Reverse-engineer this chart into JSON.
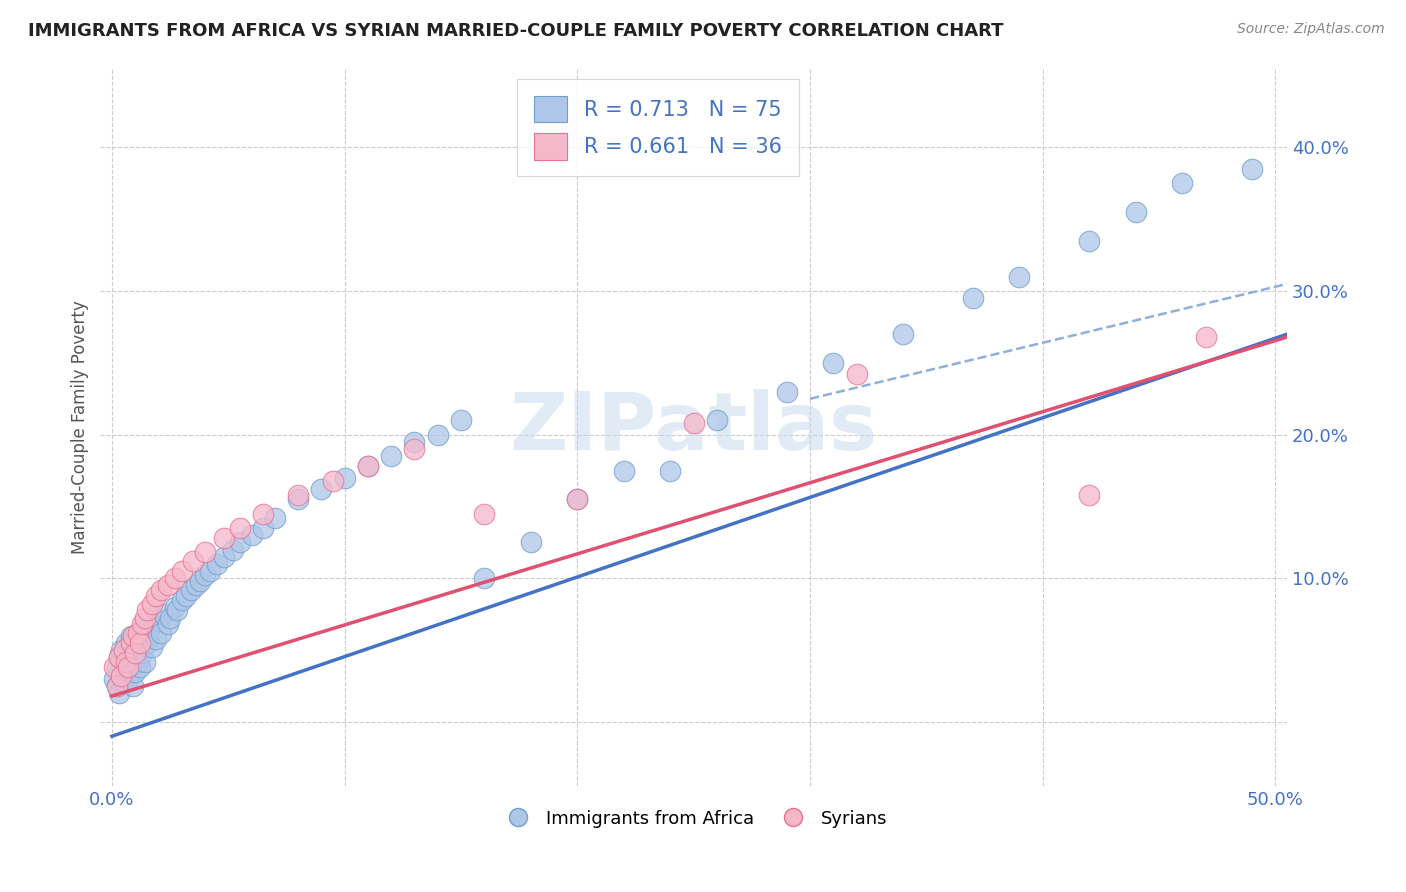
{
  "title": "IMMIGRANTS FROM AFRICA VS SYRIAN MARRIED-COUPLE FAMILY POVERTY CORRELATION CHART",
  "source_text": "Source: ZipAtlas.com",
  "ylabel": "Married-Couple Family Poverty",
  "xlim": [
    -0.005,
    0.505
  ],
  "ylim": [
    -0.045,
    0.455
  ],
  "xticks": [
    0.0,
    0.1,
    0.2,
    0.3,
    0.4,
    0.5
  ],
  "yticks": [
    0.0,
    0.1,
    0.2,
    0.3,
    0.4
  ],
  "xtick_labels": [
    "0.0%",
    "",
    "",
    "",
    "",
    "50.0%"
  ],
  "ytick_labels": [
    "",
    "10.0%",
    "20.0%",
    "30.0%",
    "40.0%"
  ],
  "legend_entries": [
    {
      "label": "Immigrants from Africa",
      "color": "#aec6e8",
      "edgecolor": "#6fa0cc",
      "R": "0.713",
      "N": "75"
    },
    {
      "label": "Syrians",
      "color": "#f5b8cb",
      "edgecolor": "#e8718f",
      "R": "0.661",
      "N": "36"
    }
  ],
  "scatter_africa_x": [
    0.001,
    0.002,
    0.002,
    0.003,
    0.003,
    0.004,
    0.004,
    0.005,
    0.005,
    0.006,
    0.006,
    0.007,
    0.007,
    0.008,
    0.008,
    0.009,
    0.009,
    0.01,
    0.01,
    0.011,
    0.011,
    0.012,
    0.012,
    0.013,
    0.013,
    0.014,
    0.015,
    0.016,
    0.017,
    0.018,
    0.019,
    0.02,
    0.021,
    0.022,
    0.024,
    0.025,
    0.027,
    0.028,
    0.03,
    0.032,
    0.034,
    0.036,
    0.038,
    0.04,
    0.042,
    0.045,
    0.048,
    0.052,
    0.055,
    0.06,
    0.065,
    0.07,
    0.08,
    0.09,
    0.1,
    0.11,
    0.12,
    0.13,
    0.14,
    0.15,
    0.16,
    0.18,
    0.2,
    0.22,
    0.24,
    0.26,
    0.29,
    0.31,
    0.34,
    0.37,
    0.39,
    0.42,
    0.44,
    0.46,
    0.49
  ],
  "scatter_africa_y": [
    0.03,
    0.025,
    0.038,
    0.02,
    0.045,
    0.032,
    0.05,
    0.028,
    0.042,
    0.035,
    0.055,
    0.03,
    0.048,
    0.038,
    0.06,
    0.025,
    0.045,
    0.035,
    0.055,
    0.042,
    0.062,
    0.038,
    0.052,
    0.048,
    0.065,
    0.042,
    0.055,
    0.06,
    0.052,
    0.068,
    0.058,
    0.07,
    0.062,
    0.075,
    0.068,
    0.072,
    0.08,
    0.078,
    0.085,
    0.088,
    0.092,
    0.095,
    0.098,
    0.102,
    0.105,
    0.11,
    0.115,
    0.12,
    0.125,
    0.13,
    0.135,
    0.142,
    0.155,
    0.162,
    0.17,
    0.178,
    0.185,
    0.195,
    0.2,
    0.21,
    0.1,
    0.125,
    0.155,
    0.175,
    0.175,
    0.21,
    0.23,
    0.25,
    0.27,
    0.295,
    0.31,
    0.335,
    0.355,
    0.375,
    0.385
  ],
  "scatter_syria_x": [
    0.001,
    0.002,
    0.003,
    0.004,
    0.005,
    0.006,
    0.007,
    0.008,
    0.009,
    0.01,
    0.011,
    0.012,
    0.013,
    0.014,
    0.015,
    0.017,
    0.019,
    0.021,
    0.024,
    0.027,
    0.03,
    0.035,
    0.04,
    0.048,
    0.055,
    0.065,
    0.08,
    0.095,
    0.11,
    0.13,
    0.16,
    0.2,
    0.25,
    0.32,
    0.42,
    0.47
  ],
  "scatter_syria_y": [
    0.038,
    0.025,
    0.045,
    0.032,
    0.05,
    0.042,
    0.038,
    0.055,
    0.06,
    0.048,
    0.062,
    0.055,
    0.068,
    0.072,
    0.078,
    0.082,
    0.088,
    0.092,
    0.095,
    0.1,
    0.105,
    0.112,
    0.118,
    0.128,
    0.135,
    0.145,
    0.158,
    0.168,
    0.178,
    0.19,
    0.145,
    0.155,
    0.208,
    0.242,
    0.158,
    0.268
  ],
  "trendline_africa_color": "#4472c4",
  "trendline_syria_color": "#e05070",
  "trendline_africa": [
    0.0,
    0.505,
    -0.01,
    0.27
  ],
  "trendline_syria": [
    0.0,
    0.505,
    0.018,
    0.268
  ],
  "trendline_ext_color": "#90b0d8",
  "trendline_ext": [
    0.3,
    0.505,
    0.225,
    0.305
  ],
  "watermark": "ZIPatlas",
  "bg": "#ffffff",
  "grid_color": "#cccccc",
  "title_color": "#222222",
  "ylabel_color": "#555555",
  "tick_color": "#4472c4"
}
